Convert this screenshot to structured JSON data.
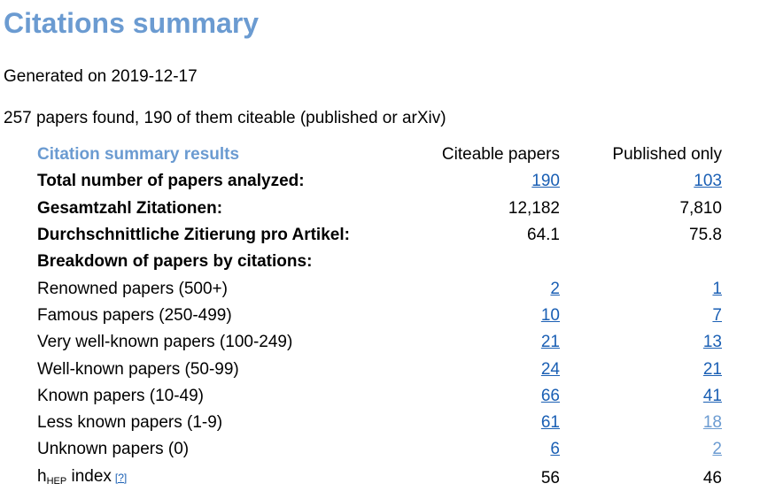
{
  "colors": {
    "title": "#6b9bd1",
    "link": "#1a5fb4",
    "link_visited": "#6b9bd1"
  },
  "header": {
    "title": "Citations summary",
    "generated": "Generated on 2019-12-17",
    "found": "257 papers found, 190 of them citeable (published or arXiv)"
  },
  "table": {
    "label_header": "Citation summary results",
    "col1_header": "Citeable papers",
    "col2_header": "Published only",
    "total": {
      "label": "Total number of papers analyzed:",
      "c1": "190",
      "c2": "103"
    },
    "citations": {
      "label": "Gesamtzahl Zitationen:",
      "c1": "12,182",
      "c2": "7,810"
    },
    "average": {
      "label": "Durchschnittliche Zitierung pro Artikel:",
      "c1": "64.1",
      "c2": "75.8"
    },
    "breakdown_label": "Breakdown of papers by citations:",
    "breakdown": [
      {
        "label": "Renowned papers (500+)",
        "c1": "2",
        "c2": "1",
        "c2_visited": false
      },
      {
        "label": "Famous papers (250-499)",
        "c1": "10",
        "c2": "7",
        "c2_visited": false
      },
      {
        "label": "Very well-known papers (100-249)",
        "c1": "21",
        "c2": "13",
        "c2_visited": false
      },
      {
        "label": "Well-known papers (50-99)",
        "c1": "24",
        "c2": "21",
        "c2_visited": false
      },
      {
        "label": "Known papers (10-49)",
        "c1": "66",
        "c2": "41",
        "c2_visited": false
      },
      {
        "label": "Less known papers (1-9)",
        "c1": "61",
        "c2": "18",
        "c2_visited": true
      },
      {
        "label": "Unknown papers (0)",
        "c1": "6",
        "c2": "2",
        "c2_visited": true
      }
    ],
    "hindex": {
      "label_main": "h",
      "label_sub": "HEP",
      "label_rest": " index",
      "help": "[?]",
      "c1": "56",
      "c2": "46"
    }
  }
}
